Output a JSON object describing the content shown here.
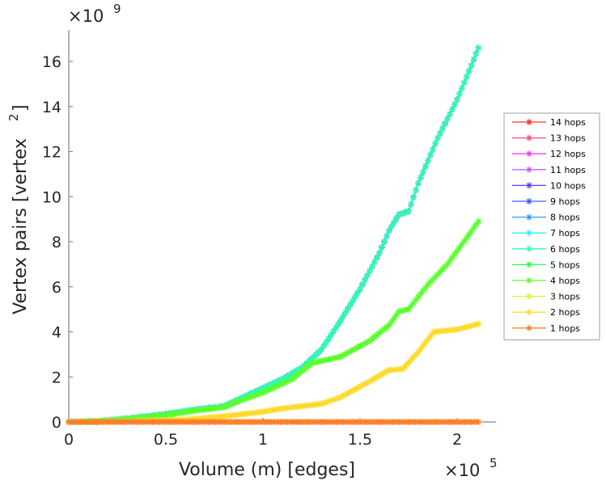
{
  "chart_data": {
    "type": "line",
    "title": "",
    "xlabel": "Volume (m) [edges]",
    "ylabel": "Vertex pairs [vertex",
    "ylabel_sup": "2",
    "ylabel_close": "]",
    "x_multiplier": {
      "base": "×10",
      "exp": "5"
    },
    "y_multiplier": {
      "base": "×10",
      "exp": "9"
    },
    "xlim": [
      0,
      2.2
    ],
    "ylim": [
      0,
      17.4
    ],
    "xticks": [
      0,
      0.5,
      1,
      1.5,
      2
    ],
    "xtick_labels": [
      "0",
      "0.5",
      "1",
      "1.5",
      "2"
    ],
    "yticks": [
      0,
      2,
      4,
      6,
      8,
      10,
      12,
      14,
      16
    ],
    "ytick_labels": [
      "0",
      "2",
      "4",
      "6",
      "8",
      "10",
      "12",
      "14",
      "16"
    ],
    "grid": false,
    "legend_position": "right",
    "marker": "asterisk",
    "series": [
      {
        "name": "14 hops",
        "color": "#ff3030",
        "profile": "high"
      },
      {
        "name": "13 hops",
        "color": "#ff4a8c",
        "profile": "high"
      },
      {
        "name": "12 hops",
        "color": "#ff3aee",
        "profile": "high"
      },
      {
        "name": "11 hops",
        "color": "#c35cff",
        "profile": "high"
      },
      {
        "name": "10 hops",
        "color": "#5a3cff",
        "profile": "high"
      },
      {
        "name": "9 hops",
        "color": "#3a5cff",
        "profile": "high"
      },
      {
        "name": "8 hops",
        "color": "#2c9cff",
        "profile": "high"
      },
      {
        "name": "7 hops",
        "color": "#2cf0ff",
        "profile": "high"
      },
      {
        "name": "6 hops",
        "color": "#2cffb0",
        "profile": "high"
      },
      {
        "name": "5 hops",
        "color": "#2cff3c",
        "profile": "mid"
      },
      {
        "name": "4 hops",
        "color": "#5cff2c",
        "profile": "mid"
      },
      {
        "name": "3 hops",
        "color": "#c8ff2c",
        "profile": "low"
      },
      {
        "name": "2 hops",
        "color": "#ffd92c",
        "profile": "low"
      },
      {
        "name": "1 hops",
        "color": "#ff7f2a",
        "profile": "flat"
      }
    ],
    "profiles": {
      "high": {
        "x": [
          0,
          0.15,
          0.3,
          0.5,
          0.65,
          0.8,
          0.9,
          1.0,
          1.1,
          1.2,
          1.3,
          1.4,
          1.5,
          1.6,
          1.65,
          1.7,
          1.75,
          1.8,
          1.9,
          2.0,
          2.11
        ],
        "y": [
          0,
          0.03,
          0.15,
          0.35,
          0.55,
          0.7,
          1.1,
          1.5,
          1.9,
          2.4,
          3.2,
          4.5,
          5.9,
          7.5,
          8.5,
          9.2,
          9.35,
          10.6,
          12.6,
          14.3,
          16.6
        ]
      },
      "mid": {
        "x": [
          0,
          0.15,
          0.3,
          0.5,
          0.65,
          0.8,
          0.9,
          1.0,
          1.15,
          1.25,
          1.4,
          1.55,
          1.65,
          1.7,
          1.75,
          1.85,
          1.95,
          2.11
        ],
        "y": [
          0,
          0.03,
          0.13,
          0.3,
          0.5,
          0.65,
          1.0,
          1.3,
          1.9,
          2.6,
          2.9,
          3.6,
          4.3,
          4.9,
          5.0,
          6.1,
          7.0,
          8.9
        ]
      },
      "low": {
        "x": [
          0,
          0.3,
          0.6,
          0.8,
          1.0,
          1.1,
          1.3,
          1.4,
          1.55,
          1.65,
          1.72,
          1.8,
          1.88,
          2.0,
          2.11
        ],
        "y": [
          0,
          0.02,
          0.1,
          0.25,
          0.45,
          0.6,
          0.8,
          1.1,
          1.8,
          2.3,
          2.35,
          3.1,
          4.0,
          4.1,
          4.35
        ]
      },
      "flat": {
        "x": [
          0,
          2.11
        ],
        "y": [
          0,
          0
        ]
      }
    }
  }
}
